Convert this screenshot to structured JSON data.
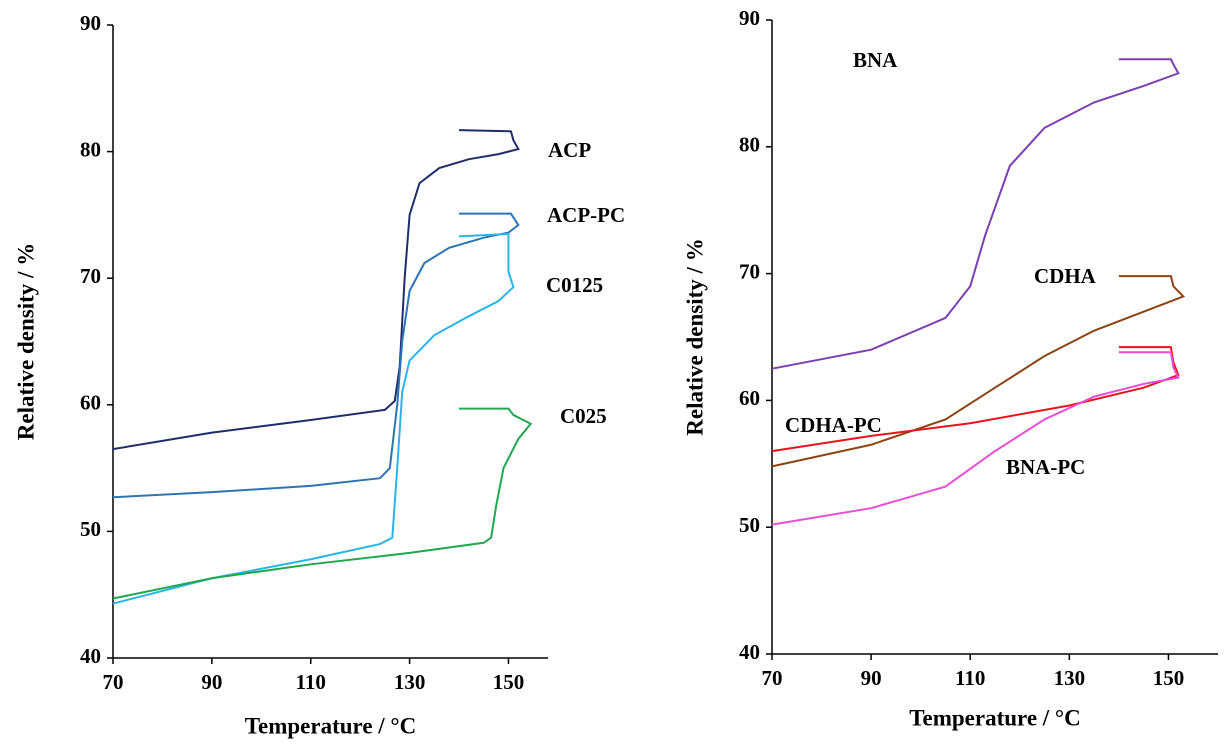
{
  "chart_data": [
    {
      "type": "line",
      "x_label": "Temperature / °C",
      "y_label": "Relative density / %",
      "xlim": [
        70,
        158
      ],
      "xticks": [
        70,
        90,
        110,
        130,
        150
      ],
      "ylim": [
        40,
        90
      ],
      "yticks": [
        40,
        50,
        60,
        70,
        80,
        90
      ],
      "series": [
        {
          "name": "ACP",
          "color": "#1f2d6b",
          "x": [
            70,
            90,
            110,
            125,
            127,
            128,
            129,
            130,
            132,
            136,
            142,
            148,
            152,
            151,
            150.5,
            140
          ],
          "values": [
            56.5,
            57.8,
            58.8,
            59.6,
            60.3,
            63,
            70,
            75,
            77.5,
            78.7,
            79.4,
            79.8,
            80.2,
            80.9,
            81.6,
            81.7
          ]
        },
        {
          "name": "ACP-PC",
          "color": "#2d74b5",
          "x": [
            70,
            90,
            110,
            124,
            126,
            127.5,
            128.5,
            130,
            133,
            138,
            145,
            150,
            152,
            151,
            150.5,
            140
          ],
          "values": [
            52.7,
            53.1,
            53.6,
            54.2,
            55,
            60,
            65,
            69,
            71.2,
            72.4,
            73.2,
            73.6,
            74.2,
            74.8,
            75.1,
            75.1
          ]
        },
        {
          "name": "C0125",
          "color": "#29b5e8",
          "x": [
            70,
            90,
            110,
            124,
            126.5,
            127.5,
            128.5,
            130,
            135,
            142,
            148,
            151,
            150,
            150,
            140
          ],
          "values": [
            44.3,
            46.3,
            47.8,
            49,
            49.5,
            55,
            61,
            63.5,
            65.5,
            67,
            68.2,
            69.3,
            70.5,
            73.5,
            73.3
          ]
        },
        {
          "name": "C025",
          "color": "#21a651",
          "x": [
            70,
            90,
            110,
            130,
            145,
            146.5,
            147.5,
            149,
            152,
            154.5,
            152,
            151,
            150,
            140
          ],
          "values": [
            44.7,
            46.3,
            47.4,
            48.3,
            49.1,
            49.5,
            52,
            55,
            57.3,
            58.5,
            59,
            59.2,
            59.7,
            59.7
          ]
        }
      ]
    },
    {
      "type": "line",
      "x_label": "Temperature / °C",
      "y_label": "Relative density / %",
      "xlim": [
        70,
        160
      ],
      "xticks": [
        70,
        90,
        110,
        130,
        150
      ],
      "ylim": [
        40,
        90
      ],
      "yticks": [
        40,
        50,
        60,
        70,
        80,
        90
      ],
      "series": [
        {
          "name": "BNA",
          "color": "#7b3fb5",
          "x": [
            70,
            90,
            105,
            110,
            113,
            118,
            125,
            135,
            145,
            152,
            151,
            150.5,
            140
          ],
          "values": [
            62.5,
            64,
            66.5,
            69,
            73,
            78.5,
            81.5,
            83.5,
            84.8,
            85.8,
            86.5,
            86.9,
            86.9
          ]
        },
        {
          "name": "CDHA",
          "color": "#8b4513",
          "x": [
            70,
            90,
            105,
            115,
            125,
            135,
            145,
            153,
            151,
            150.5,
            140
          ],
          "values": [
            54.8,
            56.5,
            58.5,
            61,
            63.5,
            65.5,
            67,
            68.2,
            69,
            69.8,
            69.8
          ]
        },
        {
          "name": "CDHA-PC",
          "color": "#e8141c",
          "x": [
            70,
            90,
            110,
            130,
            145,
            152,
            151,
            150.5,
            140
          ],
          "values": [
            56,
            57.2,
            58.2,
            59.6,
            61,
            62,
            63,
            64.2,
            64.2
          ]
        },
        {
          "name": "BNA-PC",
          "color": "#e84fd6",
          "x": [
            70,
            90,
            105,
            115,
            125,
            135,
            145,
            152,
            151,
            150.5,
            140
          ],
          "values": [
            50.2,
            51.5,
            53.2,
            56,
            58.5,
            60.3,
            61.3,
            61.8,
            62.6,
            63.8,
            63.8
          ]
        }
      ]
    }
  ]
}
